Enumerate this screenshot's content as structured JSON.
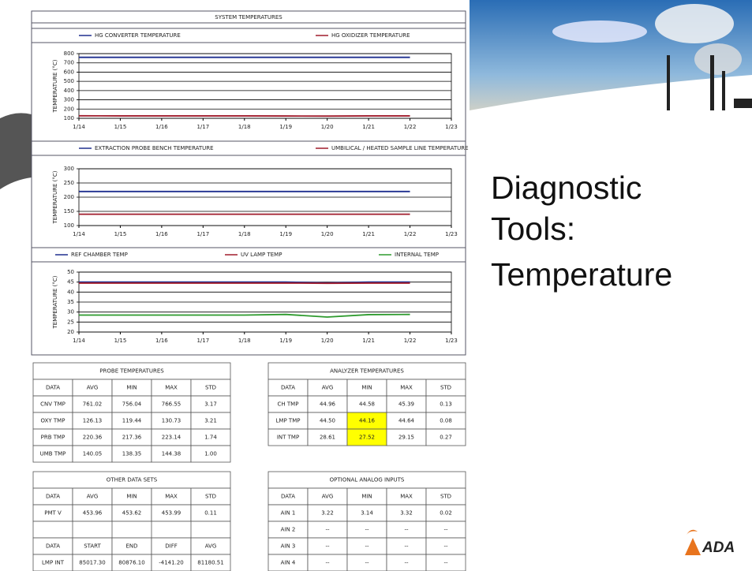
{
  "slide": {
    "title_lines": [
      "Diagnostic",
      "Tools:",
      "Temperature"
    ],
    "logo": "ADA"
  },
  "panel_title": "SYSTEM TEMPERATURES",
  "chart_data": [
    {
      "type": "line",
      "ylabel": "TEMPERATURE (°C)",
      "categories": [
        "1/14",
        "1/15",
        "1/16",
        "1/17",
        "1/18",
        "1/19",
        "1/20",
        "1/21",
        "1/22",
        "1/23"
      ],
      "ylim": [
        100,
        800
      ],
      "yticks": [
        100,
        200,
        300,
        400,
        500,
        600,
        700,
        800
      ],
      "grid": true,
      "series": [
        {
          "name": "HG CONVERTER TEMPERATURE",
          "color": "#1f2f8f",
          "values": [
            760,
            760,
            760,
            760,
            760,
            760,
            760,
            760,
            760,
            null
          ]
        },
        {
          "name": "HG OXIDIZER TEMPERATURE",
          "color": "#a01c2c",
          "values": [
            127,
            126,
            126,
            126,
            126,
            125,
            124,
            126,
            126,
            null
          ]
        }
      ]
    },
    {
      "type": "line",
      "ylabel": "TEMPERATURE (°C)",
      "categories": [
        "1/14",
        "1/15",
        "1/16",
        "1/17",
        "1/18",
        "1/19",
        "1/20",
        "1/21",
        "1/22",
        "1/23"
      ],
      "ylim": [
        100,
        300
      ],
      "yticks": [
        100,
        150,
        200,
        250,
        300
      ],
      "grid": true,
      "series": [
        {
          "name": "EXTRACTION PROBE BENCH TEMPERATURE",
          "color": "#1f2f8f",
          "values": [
            220,
            220,
            220,
            220,
            220,
            220,
            220,
            220,
            220,
            null
          ]
        },
        {
          "name": "UMBILICAL / HEATED SAMPLE LINE TEMPERATURE",
          "color": "#a01c2c",
          "values": [
            140,
            140,
            140,
            140,
            140,
            140,
            140,
            140,
            140,
            null
          ]
        }
      ]
    },
    {
      "type": "line",
      "ylabel": "TEMPERATURE (°C)",
      "categories": [
        "1/14",
        "1/15",
        "1/16",
        "1/17",
        "1/18",
        "1/19",
        "1/20",
        "1/21",
        "1/22",
        "1/23"
      ],
      "ylim": [
        20,
        50
      ],
      "yticks": [
        20,
        25,
        30,
        35,
        40,
        45,
        50
      ],
      "grid": true,
      "series": [
        {
          "name": "REF CHAMBER TEMP",
          "color": "#1f2f8f",
          "values": [
            45,
            45,
            45,
            45,
            45,
            45,
            44.6,
            45,
            45,
            null
          ]
        },
        {
          "name": "UV LAMP TEMP",
          "color": "#a01c2c",
          "values": [
            44.5,
            44.5,
            44.5,
            44.5,
            44.5,
            44.5,
            44.4,
            44.5,
            44.5,
            null
          ]
        },
        {
          "name": "INTERNAL TEMP",
          "color": "#2e9a2e",
          "values": [
            28.5,
            28.5,
            28.5,
            28.5,
            28.5,
            28.8,
            27.5,
            28.7,
            28.8,
            null
          ]
        }
      ]
    }
  ],
  "tables": [
    {
      "title": "PROBE TEMPERATURES",
      "sections": [
        {
          "header": [
            "DATA",
            "AVG",
            "MIN",
            "MAX",
            "STD"
          ],
          "rows": [
            [
              "CNV TMP",
              "761.02",
              "756.04",
              "766.55",
              "3.17"
            ],
            [
              "OXY TMP",
              "126.13",
              "119.44",
              "130.73",
              "3.21"
            ],
            [
              "PRB TMP",
              "220.36",
              "217.36",
              "223.14",
              "1.74"
            ],
            [
              "UMB TMP",
              "140.05",
              "138.35",
              "144.38",
              "1.00"
            ]
          ]
        }
      ]
    },
    {
      "title": "ANALYZER TEMPERATURES",
      "highlight_color": "#ffff00",
      "highlighted_cells": [
        [
          1,
          2
        ],
        [
          2,
          2
        ]
      ],
      "sections": [
        {
          "header": [
            "DATA",
            "AVG",
            "MIN",
            "MAX",
            "STD"
          ],
          "rows": [
            [
              "CH TMP",
              "44.96",
              "44.58",
              "45.39",
              "0.13"
            ],
            [
              "LMP TMP",
              "44.50",
              "44.16",
              "44.64",
              "0.08"
            ],
            [
              "INT TMP",
              "28.61",
              "27.52",
              "29.15",
              "0.27"
            ]
          ]
        }
      ]
    },
    {
      "title": "OTHER DATA SETS",
      "sections": [
        {
          "header": [
            "DATA",
            "AVG",
            "MIN",
            "MAX",
            "STD"
          ],
          "rows": [
            [
              "PMT V",
              "453.96",
              "453.62",
              "453.99",
              "0.11"
            ]
          ]
        },
        {
          "header": [
            "DATA",
            "START",
            "END",
            "DIFF",
            "AVG"
          ],
          "rows": [
            [
              "LMP INT",
              "85017.30",
              "80876.10",
              "-4141.20",
              "81180.51"
            ]
          ]
        }
      ]
    },
    {
      "title": "OPTIONAL ANALOG INPUTS",
      "sections": [
        {
          "header": [
            "DATA",
            "AVG",
            "MIN",
            "MAX",
            "STD"
          ],
          "rows": [
            [
              "AIN 1",
              "3.22",
              "3.14",
              "3.32",
              "0.02"
            ],
            [
              "AIN 2",
              "--",
              "--",
              "--",
              "--"
            ],
            [
              "AIN 3",
              "--",
              "--",
              "--",
              "--"
            ],
            [
              "AIN 4",
              "--",
              "--",
              "--",
              "--"
            ]
          ]
        }
      ]
    }
  ]
}
